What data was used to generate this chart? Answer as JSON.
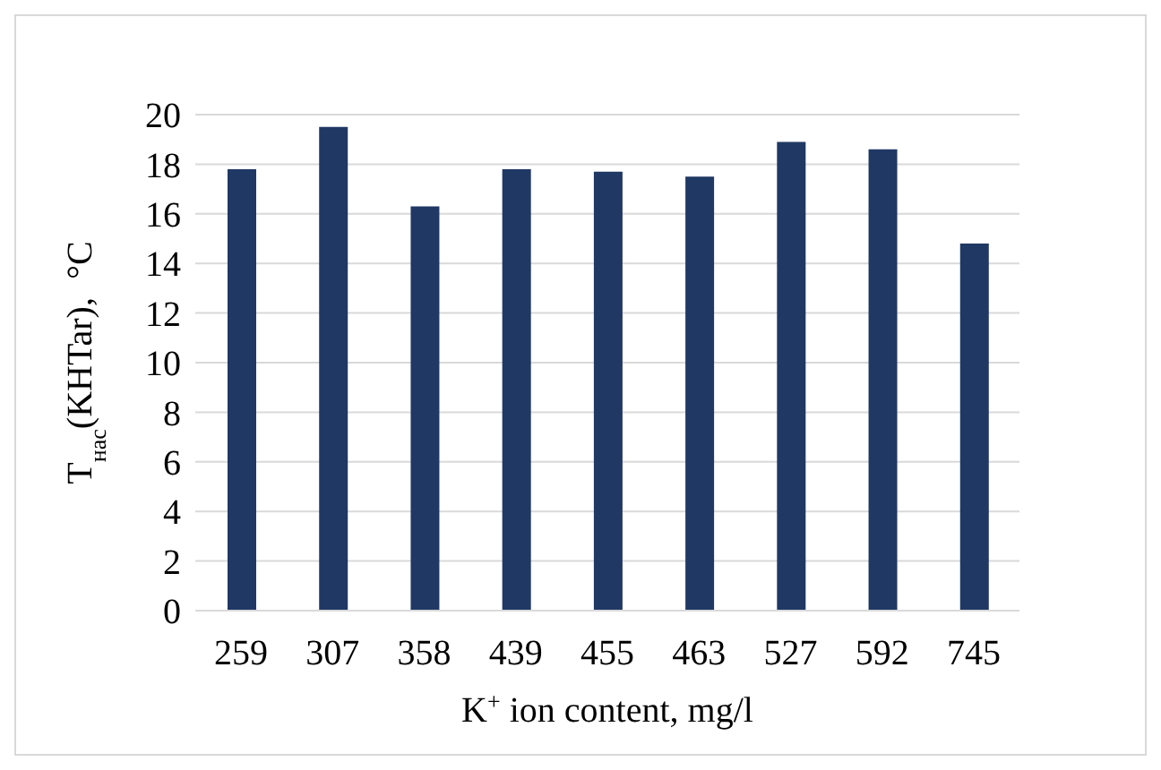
{
  "chart_data": {
    "type": "bar",
    "categories": [
      "259",
      "307",
      "358",
      "439",
      "455",
      "463",
      "527",
      "592",
      "745"
    ],
    "values": [
      17.8,
      19.5,
      16.3,
      17.8,
      17.7,
      17.5,
      18.9,
      18.6,
      14.8
    ],
    "color": "#203864",
    "ylim": [
      0,
      20
    ],
    "yticks": [
      0,
      2,
      4,
      6,
      8,
      10,
      12,
      14,
      16,
      18,
      20
    ],
    "grid": "y",
    "xlabel": "K$^{+}$ ion content, mg/l",
    "ylabel": "T$_{нас}$(KHTar),  °C"
  }
}
